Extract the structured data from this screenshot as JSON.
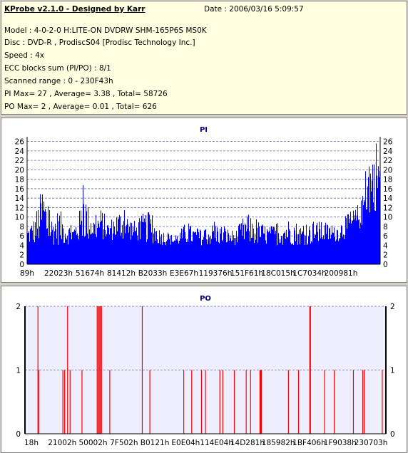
{
  "info": {
    "header": "KProbe v2.1.0 - Designed by Karr",
    "date": "Date : 2006/03/16 5:09:57",
    "model": "Model : 4-0-2-0 H:LITE-ON DVDRW SHM-165P6S MS0K",
    "disc": "Disc : DVD-R , ProdiscS04   [Prodisc Technology Inc.]",
    "speed": "Speed : 4x",
    "ecc": "ECC blocks sum (PI/PO) : 8/1",
    "range": "Scanned range : 0 - 230F43h",
    "pi_stats": "PI Max= 27 , Average= 3.38 , Total= 58726",
    "po_stats": "PO Max= 2 , Average= 0.01 , Total= 626"
  },
  "colors": {
    "pi": "#0000ff",
    "po": "#ff0000",
    "po_band": "#eeeeff",
    "grid": "#6b6bb0"
  },
  "chart_data": [
    {
      "type": "bar",
      "title": "PI",
      "ylim": [
        0,
        27
      ],
      "y_ticks": [
        0,
        2,
        4,
        6,
        8,
        10,
        12,
        14,
        16,
        18,
        20,
        22,
        24,
        26
      ],
      "x_ticks": [
        "89h",
        "22023h",
        "51674h",
        "81412h",
        "B2033h",
        "E3E67h",
        "119376h",
        "151F61h",
        "18C015h",
        "1C7034h",
        "200981h"
      ],
      "envelope": [
        [
          0.0,
          8
        ],
        [
          0.01,
          9
        ],
        [
          0.02,
          10
        ],
        [
          0.03,
          13
        ],
        [
          0.045,
          18
        ],
        [
          0.055,
          13
        ],
        [
          0.07,
          10
        ],
        [
          0.09,
          12
        ],
        [
          0.11,
          9
        ],
        [
          0.13,
          8
        ],
        [
          0.15,
          12
        ],
        [
          0.16,
          18
        ],
        [
          0.17,
          13
        ],
        [
          0.19,
          10
        ],
        [
          0.21,
          12
        ],
        [
          0.23,
          9
        ],
        [
          0.25,
          11
        ],
        [
          0.27,
          12
        ],
        [
          0.29,
          10
        ],
        [
          0.31,
          9
        ],
        [
          0.33,
          11
        ],
        [
          0.35,
          11
        ],
        [
          0.37,
          8
        ],
        [
          0.39,
          7
        ],
        [
          0.42,
          6
        ],
        [
          0.45,
          9
        ],
        [
          0.47,
          8
        ],
        [
          0.5,
          7
        ],
        [
          0.53,
          9
        ],
        [
          0.56,
          8
        ],
        [
          0.59,
          7
        ],
        [
          0.62,
          11
        ],
        [
          0.64,
          10
        ],
        [
          0.66,
          9
        ],
        [
          0.69,
          8
        ],
        [
          0.72,
          9
        ],
        [
          0.75,
          10
        ],
        [
          0.78,
          8
        ],
        [
          0.81,
          9
        ],
        [
          0.84,
          9
        ],
        [
          0.87,
          8
        ],
        [
          0.9,
          10
        ],
        [
          0.93,
          12
        ],
        [
          0.95,
          14
        ],
        [
          0.96,
          20
        ],
        [
          0.97,
          25
        ],
        [
          0.98,
          21
        ],
        [
          0.99,
          27
        ],
        [
          1.0,
          24
        ]
      ],
      "floor": [
        [
          0.0,
          4
        ],
        [
          0.1,
          4
        ],
        [
          0.2,
          5
        ],
        [
          0.3,
          5
        ],
        [
          0.38,
          4
        ],
        [
          0.45,
          4
        ],
        [
          0.5,
          4
        ],
        [
          0.6,
          4
        ],
        [
          0.7,
          4
        ],
        [
          0.8,
          4
        ],
        [
          0.9,
          5
        ],
        [
          0.94,
          7
        ],
        [
          0.97,
          10
        ],
        [
          1.0,
          12
        ]
      ]
    },
    {
      "type": "bar",
      "title": "PO",
      "ylim": [
        0,
        2
      ],
      "y_ticks": [
        0,
        1,
        2
      ],
      "x_ticks": [
        "18h",
        "21002h",
        "50002h",
        "7F502h",
        "B0121h",
        "E0E04h",
        "114E04h",
        "14D281h",
        "185982h",
        "1BF406h",
        "1F9038h",
        "230703h"
      ],
      "spikes": [
        [
          0.036,
          2
        ],
        [
          0.038,
          1
        ],
        [
          0.105,
          1
        ],
        [
          0.11,
          1
        ],
        [
          0.118,
          2
        ],
        [
          0.125,
          1
        ],
        [
          0.158,
          1
        ],
        [
          0.2,
          2
        ],
        [
          0.203,
          2
        ],
        [
          0.206,
          2
        ],
        [
          0.209,
          2
        ],
        [
          0.212,
          2
        ],
        [
          0.235,
          1
        ],
        [
          0.325,
          2
        ],
        [
          0.346,
          1
        ],
        [
          0.44,
          1
        ],
        [
          0.462,
          1
        ],
        [
          0.489,
          1
        ],
        [
          0.5,
          1
        ],
        [
          0.54,
          1
        ],
        [
          0.548,
          1
        ],
        [
          0.58,
          1
        ],
        [
          0.613,
          1
        ],
        [
          0.625,
          1
        ],
        [
          0.651,
          1
        ],
        [
          0.653,
          1
        ],
        [
          0.655,
          1
        ],
        [
          0.73,
          1
        ],
        [
          0.758,
          1
        ],
        [
          0.789,
          2
        ],
        [
          0.791,
          2
        ],
        [
          0.83,
          1
        ],
        [
          0.857,
          1
        ],
        [
          0.91,
          1
        ],
        [
          0.936,
          1
        ],
        [
          0.94,
          1
        ],
        [
          0.99,
          1
        ]
      ]
    }
  ]
}
